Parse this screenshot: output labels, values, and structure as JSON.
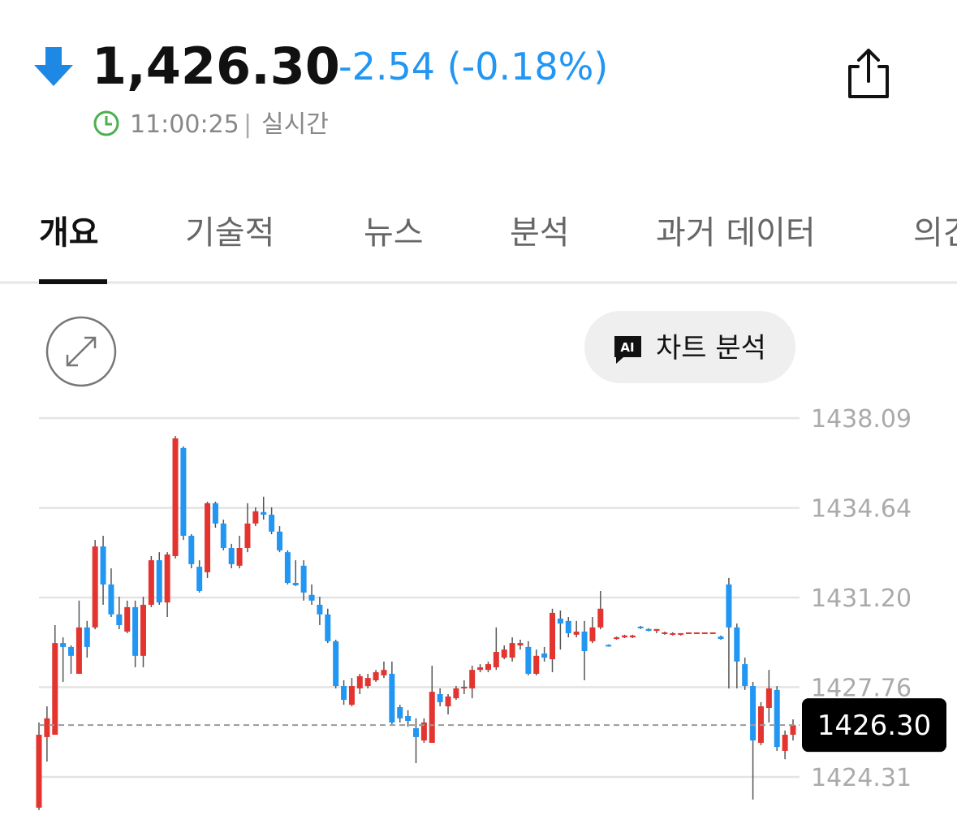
{
  "header": {
    "price": "1,426.30",
    "change": "-2.54 (-0.18%)",
    "time": "11:00:25",
    "separator": "|",
    "status": "실시간"
  },
  "tabs": [
    "개요",
    "기술적",
    "뉴스",
    "분석",
    "과거 데이터",
    "의견"
  ],
  "ai_button": {
    "icon": "AI",
    "label": "차트 분석"
  },
  "chart_data": {
    "type": "candlestick",
    "up_color": "#e3342f",
    "down_color": "#2196f3",
    "grid": true,
    "ylim": [
      1422.97,
      1438.4
    ],
    "yticks": [
      1424.31,
      1427.76,
      {
        "value": 1431.2,
        "label": "1431.20"
      },
      1434.64,
      1438.09
    ],
    "current": {
      "value": 1426.3,
      "label": "1426.30"
    },
    "open": [
      1423.13,
      1425.84,
      1425.93,
      1429.45,
      1429.3,
      1428.27,
      1430.05,
      1430.05,
      1433.16,
      1431.7,
      1430.55,
      1429.89,
      1430.83,
      1428.96,
      1430.92,
      1432.63,
      1431.01,
      1432.79,
      1436.94,
      1433.57,
      1432.38,
      1432.17,
      1434.82,
      1434.04,
      1433.1,
      1432.42,
      1433.1,
      1434.04,
      1434.48,
      1434.38,
      1433.73,
      1432.94,
      1431.76,
      1432.42,
      1431.3,
      1430.92,
      1430.55,
      1429.52,
      1427.8,
      1427.08,
      1427.71,
      1427.8,
      1428.02,
      1428.21,
      1428.27,
      1426.99,
      1426.65,
      1426.18,
      1425.71,
      1425.62,
      1427.49,
      1427.02,
      1427.33,
      1427.71,
      1427.71,
      1428.42,
      1428.42,
      1428.52,
      1428.89,
      1428.89,
      1429.36,
      1429.3,
      1428.27,
      1429.05,
      1428.83,
      1430.39,
      1430.3,
      1429.77,
      1429.89,
      1429.52,
      1430.05,
      1429.38,
      1429.61,
      1429.67,
      1429.67,
      1430.08,
      1429.99,
      1429.92,
      1429.83,
      1429.8,
      1429.77,
      1429.83,
      1429.83,
      1429.83,
      1429.83,
      1429.7,
      1431.7,
      1430.05,
      1428.64,
      1427.8,
      1425.62,
      1426.96,
      1427.65,
      1425.31,
      1425.93
    ],
    "high": [
      1426.4,
      1427.02,
      1430.14,
      1429.67,
      1429.36,
      1431.08,
      1430.3,
      1433.41,
      1433.57,
      1432.32,
      1431.23,
      1431.08,
      1431.08,
      1431.23,
      1432.79,
      1432.94,
      1432.94,
      1437.4,
      1437.0,
      1433.63,
      1432.63,
      1434.88,
      1434.88,
      1434.19,
      1433.26,
      1433.57,
      1434.82,
      1434.66,
      1435.07,
      1434.66,
      1433.94,
      1433.01,
      1432.63,
      1432.63,
      1431.7,
      1431.23,
      1430.77,
      1429.58,
      1428.02,
      1428.11,
      1428.27,
      1428.27,
      1428.42,
      1428.74,
      1428.74,
      1427.08,
      1426.87,
      1426.56,
      1426.56,
      1428.58,
      1427.71,
      1427.49,
      1427.8,
      1428.02,
      1428.58,
      1428.64,
      1428.74,
      1430.05,
      1429.36,
      1429.67,
      1429.58,
      1429.52,
      1429.2,
      1429.3,
      1430.77,
      1430.7,
      1430.45,
      1430.3,
      1430.3,
      1430.45,
      1431.45,
      1429.4,
      1429.7,
      1429.77,
      1429.77,
      1430.11,
      1430.02,
      1429.96,
      1429.89,
      1429.86,
      1429.83,
      1429.86,
      1429.86,
      1429.86,
      1429.86,
      1429.74,
      1431.95,
      1430.2,
      1428.89,
      1427.96,
      1427.18,
      1428.42,
      1427.8,
      1426.09,
      1426.52
    ],
    "low": [
      1423.04,
      1424.9,
      1425.93,
      1427.96,
      1428.27,
      1428.27,
      1428.89,
      1429.98,
      1430.92,
      1430.45,
      1429.98,
      1429.83,
      1428.52,
      1428.52,
      1430.83,
      1430.92,
      1430.45,
      1432.7,
      1433.41,
      1432.32,
      1431.39,
      1431.95,
      1433.88,
      1433.01,
      1432.32,
      1432.32,
      1432.94,
      1433.94,
      1434.19,
      1433.63,
      1432.94,
      1431.7,
      1431.64,
      1431.08,
      1430.92,
      1430.14,
      1429.45,
      1427.71,
      1427.08,
      1427.02,
      1427.49,
      1427.71,
      1427.96,
      1428.11,
      1426.34,
      1426.4,
      1426.24,
      1424.84,
      1425.62,
      1425.62,
      1427.02,
      1426.71,
      1427.27,
      1427.49,
      1427.33,
      1428.33,
      1428.33,
      1428.42,
      1428.83,
      1428.74,
      1429.2,
      1428.21,
      1428.21,
      1428.74,
      1428.33,
      1429.2,
      1429.67,
      1429.67,
      1428.02,
      1429.45,
      1429.98,
      1429.31,
      1429.58,
      1429.64,
      1429.64,
      1429.99,
      1429.9,
      1429.83,
      1429.77,
      1429.74,
      1429.74,
      1429.8,
      1429.8,
      1429.8,
      1429.8,
      1429.58,
      1427.71,
      1427.71,
      1427.65,
      1423.44,
      1425.53,
      1426.4,
      1425.31,
      1424.99,
      1425.71
    ],
    "close": [
      1425.93,
      1426.56,
      1429.45,
      1429.3,
      1428.96,
      1430.05,
      1429.3,
      1433.16,
      1431.7,
      1430.55,
      1430.14,
      1430.83,
      1428.96,
      1430.92,
      1432.63,
      1431.01,
      1432.85,
      1437.31,
      1433.57,
      1432.48,
      1431.45,
      1434.82,
      1434.04,
      1433.1,
      1432.48,
      1433.1,
      1434.04,
      1434.51,
      1434.38,
      1433.73,
      1433.01,
      1431.76,
      1431.67,
      1431.39,
      1431.08,
      1430.55,
      1429.52,
      1427.8,
      1427.27,
      1427.8,
      1428.18,
      1428.11,
      1428.33,
      1428.42,
      1426.4,
      1426.56,
      1426.46,
      1425.84,
      1426.4,
      1427.58,
      1427.18,
      1427.4,
      1427.71,
      1427.77,
      1428.42,
      1428.52,
      1428.64,
      1429.11,
      1429.2,
      1429.45,
      1429.45,
      1428.27,
      1428.96,
      1428.89,
      1430.61,
      1430.2,
      1429.83,
      1429.89,
      1429.14,
      1430.05,
      1430.77,
      1429.33,
      1429.67,
      1429.74,
      1429.74,
      1430.02,
      1429.92,
      1429.99,
      1429.86,
      1429.83,
      1429.83,
      1429.86,
      1429.86,
      1429.86,
      1429.86,
      1429.61,
      1430.05,
      1428.74,
      1427.8,
      1425.71,
      1427.02,
      1427.71,
      1425.46,
      1425.93,
      1426.3
    ]
  }
}
